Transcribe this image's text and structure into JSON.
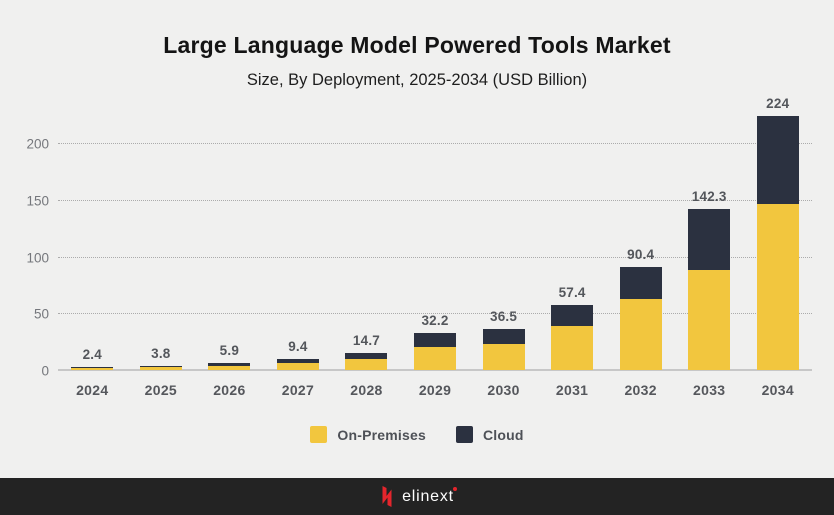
{
  "header": {
    "title": "Large Language Model Powered Tools Market",
    "subtitle": "Size, By Deployment, 2025-2034 (USD Billion)"
  },
  "chart_data": {
    "type": "bar",
    "stacked": true,
    "title": "Large Language Model Powered Tools Market",
    "subtitle": "Size, By Deployment, 2025-2034 (USD Billion)",
    "unit": "USD Billion",
    "categories": [
      "2024",
      "2025",
      "2026",
      "2027",
      "2028",
      "2029",
      "2030",
      "2031",
      "2032",
      "2033",
      "2034"
    ],
    "series": [
      {
        "name": "On-Premises",
        "color": "#F2C63E",
        "values": [
          1.5,
          2.4,
          3.7,
          6.0,
          9.3,
          20.5,
          22.5,
          39.0,
          62.5,
          88.5,
          146.0
        ]
      },
      {
        "name": "Cloud",
        "color": "#2B3140",
        "values": [
          0.9,
          1.4,
          2.2,
          3.4,
          5.4,
          11.7,
          14.0,
          18.4,
          27.9,
          53.8,
          78.0
        ]
      }
    ],
    "totals": [
      2.4,
      3.8,
      5.9,
      9.4,
      14.7,
      32.2,
      36.5,
      57.4,
      90.4,
      142.3,
      224
    ],
    "total_labels": [
      "2.4",
      "3.8",
      "5.9",
      "9.4",
      "14.7",
      "32.2",
      "36.5",
      "57.4",
      "90.4",
      "142.3",
      "224"
    ],
    "yticks": [
      0,
      50,
      100,
      150,
      200
    ],
    "ylim": [
      0,
      225
    ],
    "grid": "horizontal-dotted",
    "legend_position": "bottom"
  },
  "legend": {
    "items": [
      {
        "label": "On-Premises",
        "color": "#F2C63E"
      },
      {
        "label": "Cloud",
        "color": "#2B3140"
      }
    ]
  },
  "footer": {
    "brand": "elinext"
  },
  "colors": {
    "background": "#F0F0EF",
    "on_premises": "#F2C63E",
    "cloud": "#2B3140",
    "title_text": "#141414",
    "axis_text": "#75777C",
    "value_label_text": "#53565B",
    "gridline": "#ABABAB",
    "baseline": "#C7C7C7",
    "footer_background": "#232323",
    "logo_red": "#E5252C"
  }
}
